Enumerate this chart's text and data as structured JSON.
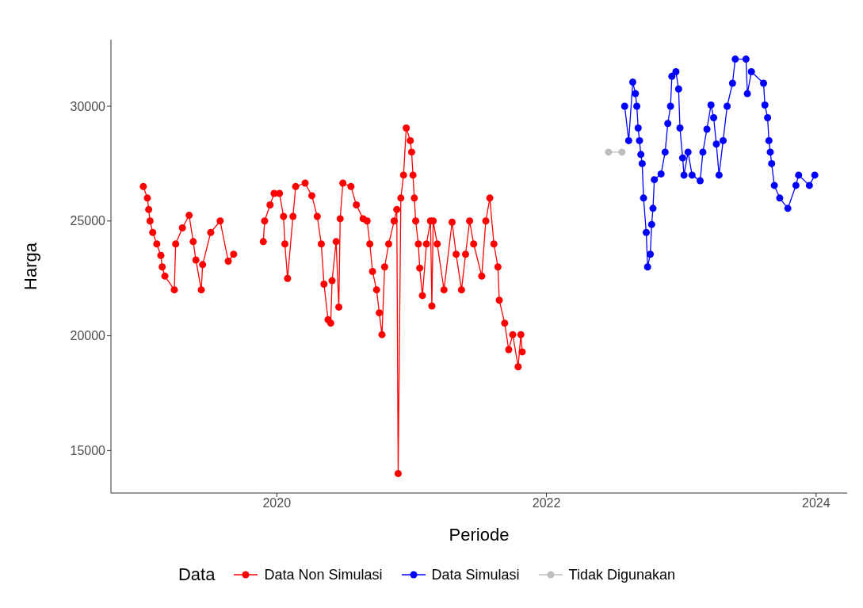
{
  "chart_data": {
    "type": "line",
    "xlabel": "Periode",
    "ylabel": "Harga",
    "legend_title": "Data",
    "legend": "bottom",
    "grid": false,
    "marker": "circle",
    "line_style": "solid",
    "xlim": [
      2018.77,
      2024.23
    ],
    "xticks": [
      2020,
      2022,
      2024
    ],
    "ylim": [
      13150,
      32900
    ],
    "yticks": [
      15000,
      20000,
      25000,
      30000
    ],
    "series": [
      {
        "name": "Data Non Simulasi",
        "color": "#ff0000",
        "x": [
          2019.01,
          2019.04,
          2019.05,
          2019.06,
          2019.08,
          2019.11,
          2019.14,
          2019.15,
          2019.17,
          2019.24,
          2019.25,
          2019.3,
          2019.35,
          2019.38,
          2019.4,
          2019.44,
          2019.45,
          2019.51,
          2019.58,
          2019.64,
          2019.68,
          2019.8,
          2019.9,
          2019.91,
          2019.95,
          2019.98,
          2020.02,
          2020.05,
          2020.06,
          2020.08,
          2020.12,
          2020.14,
          2020.21,
          2020.26,
          2020.3,
          2020.33,
          2020.35,
          2020.38,
          2020.4,
          2020.41,
          2020.44,
          2020.46,
          2020.47,
          2020.49,
          2020.55,
          2020.59,
          2020.64,
          2020.67,
          2020.69,
          2020.71,
          2020.74,
          2020.76,
          2020.78,
          2020.8,
          2020.83,
          2020.87,
          2020.89,
          2020.9,
          2020.92,
          2020.94,
          2020.96,
          2020.99,
          2021.0,
          2021.01,
          2021.02,
          2021.03,
          2021.05,
          2021.06,
          2021.08,
          2021.11,
          2021.14,
          2021.15,
          2021.16,
          2021.19,
          2021.24,
          2021.3,
          2021.33,
          2021.37,
          2021.4,
          2021.43,
          2021.46,
          2021.52,
          2021.55,
          2021.58,
          2021.61,
          2021.64,
          2021.65,
          2021.69,
          2021.72,
          2021.75,
          2021.79,
          2021.81,
          2021.82
        ],
        "values": [
          26500,
          26000,
          25500,
          25000,
          24500,
          24000,
          23500,
          23000,
          22600,
          22000,
          24000,
          24700,
          25250,
          24100,
          23300,
          22000,
          23100,
          24500,
          25000,
          23250,
          23550,
          null,
          24100,
          25000,
          25700,
          26200,
          26200,
          25200,
          24000,
          22500,
          25200,
          26500,
          26650,
          26100,
          25200,
          24000,
          22250,
          20700,
          20550,
          22400,
          24100,
          21250,
          25100,
          26650,
          26500,
          25700,
          25100,
          25000,
          24000,
          22800,
          22000,
          21000,
          20050,
          23000,
          24000,
          25000,
          25500,
          14000,
          26000,
          27000,
          29050,
          28500,
          28000,
          27000,
          26000,
          25000,
          24000,
          22950,
          21750,
          24000,
          25000,
          21300,
          25000,
          24000,
          22000,
          24950,
          23550,
          22000,
          23550,
          25000,
          24000,
          22600,
          25000,
          26000,
          24000,
          23000,
          21550,
          20550,
          19400,
          20050,
          18650,
          20050,
          19300
        ]
      },
      {
        "name": "Data Simulasi",
        "color": "#0000ff",
        "x": [
          2022.58,
          2022.61,
          2022.64,
          2022.66,
          2022.67,
          2022.68,
          2022.69,
          2022.7,
          2022.71,
          2022.72,
          2022.74,
          2022.75,
          2022.77,
          2022.78,
          2022.79,
          2022.8,
          2022.85,
          2022.88,
          2022.9,
          2022.92,
          2022.93,
          2022.96,
          2022.98,
          2022.99,
          2023.01,
          2023.02,
          2023.05,
          2023.08,
          2023.14,
          2023.16,
          2023.19,
          2023.22,
          2023.24,
          2023.26,
          2023.28,
          2023.31,
          2023.34,
          2023.38,
          2023.4,
          2023.48,
          2023.49,
          2023.52,
          2023.61,
          2023.62,
          2023.64,
          2023.65,
          2023.66,
          2023.67,
          2023.69,
          2023.73,
          2023.79,
          2023.85,
          2023.87,
          2023.95,
          2023.99
        ],
        "values": [
          30000,
          28500,
          31050,
          30550,
          30000,
          29050,
          28500,
          27900,
          27500,
          26000,
          24500,
          23000,
          23550,
          24850,
          25550,
          26800,
          27050,
          28000,
          29250,
          30000,
          31300,
          31500,
          30750,
          29050,
          27750,
          27000,
          28000,
          27000,
          26750,
          28000,
          29000,
          30050,
          29500,
          28350,
          27000,
          28500,
          30000,
          31000,
          32050,
          32050,
          30550,
          31500,
          31000,
          30050,
          29500,
          28500,
          28000,
          27500,
          26550,
          26000,
          25550,
          26550,
          27000,
          26550,
          27000
        ]
      },
      {
        "name": "Tidak Digunakan",
        "color": "#bebebe",
        "x": [
          2022.46,
          2022.56
        ],
        "values": [
          28000,
          28000
        ]
      }
    ]
  }
}
